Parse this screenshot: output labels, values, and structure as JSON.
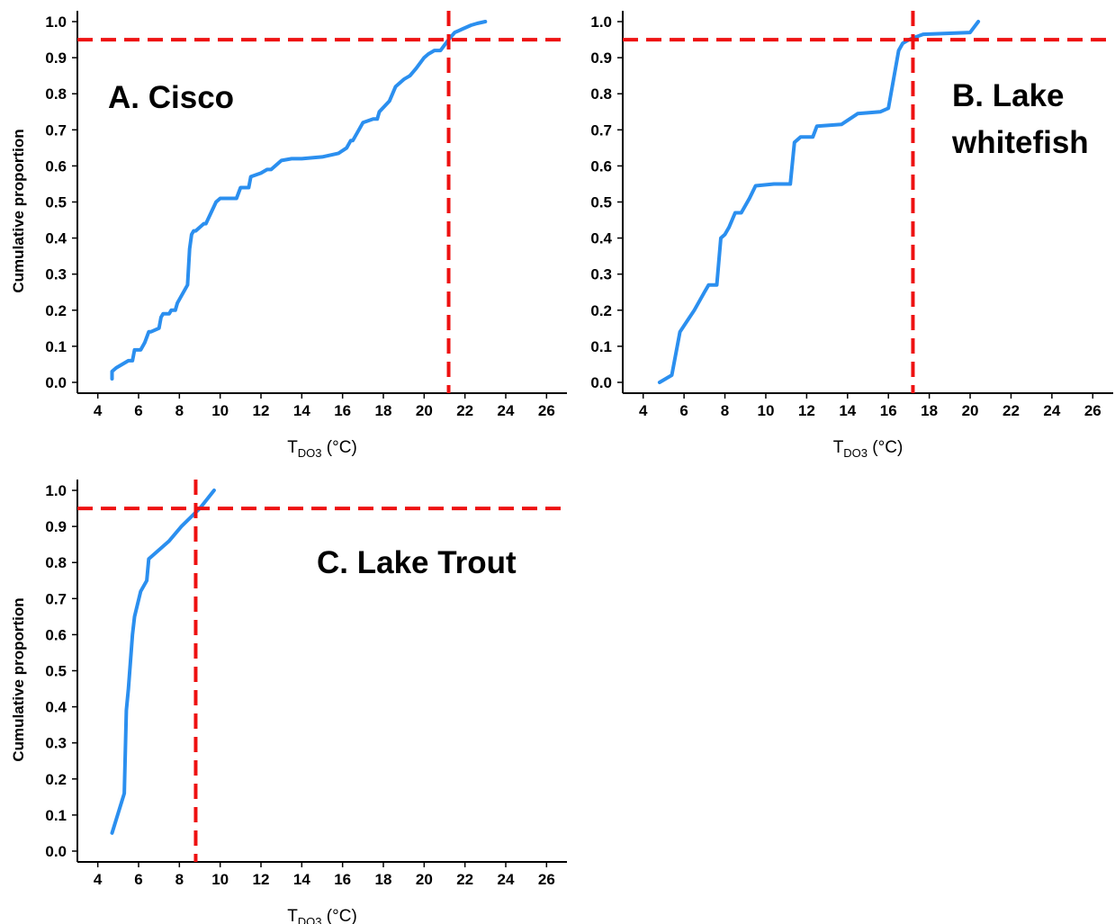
{
  "chart_data": [
    {
      "type": "line",
      "panel_label": "A. Cisco",
      "ylabel": "Cumulative proportion",
      "xlabel_main": "T",
      "xlabel_sub": "DO3",
      "xlabel_unit": " (°C)",
      "xlim": [
        3,
        27
      ],
      "ylim": [
        -0.03,
        1.03
      ],
      "xticks": [
        4,
        6,
        8,
        10,
        12,
        14,
        16,
        18,
        20,
        22,
        24,
        26
      ],
      "yticks": [
        "0.0",
        "0.1",
        "0.2",
        "0.3",
        "0.4",
        "0.5",
        "0.6",
        "0.7",
        "0.8",
        "0.9",
        "1.0"
      ],
      "line_color": "#2b8fef",
      "ref_color": "#ee1111",
      "ref_x": 21.2,
      "ref_y": 0.95,
      "series": [
        {
          "x": [
            4.7,
            4.7,
            4.9,
            5.2,
            5.5,
            5.7,
            5.8,
            6.1,
            6.3,
            6.5,
            6.6,
            7.0,
            7.1,
            7.2,
            7.5,
            7.6,
            7.8,
            7.9,
            8.2,
            8.4,
            8.5,
            8.6,
            8.7,
            8.8,
            9.2,
            9.3,
            9.8,
            10.0,
            10.4,
            10.8,
            11.0,
            11.4,
            11.5,
            12.0,
            12.3,
            12.5,
            12.9,
            13.0,
            13.5,
            14.0,
            15.0,
            15.8,
            16.2,
            16.4,
            16.5,
            16.8,
            17.0,
            17.5,
            17.7,
            17.8,
            18.3,
            18.6,
            19.0,
            19.3,
            19.6,
            20.0,
            20.2,
            20.5,
            20.8,
            21.2,
            21.5,
            21.9,
            22.3,
            22.6,
            23.0
          ],
          "y": [
            0.01,
            0.03,
            0.04,
            0.05,
            0.06,
            0.06,
            0.09,
            0.09,
            0.11,
            0.14,
            0.14,
            0.15,
            0.18,
            0.19,
            0.19,
            0.2,
            0.2,
            0.22,
            0.25,
            0.27,
            0.37,
            0.41,
            0.42,
            0.42,
            0.44,
            0.44,
            0.5,
            0.51,
            0.51,
            0.51,
            0.54,
            0.54,
            0.57,
            0.58,
            0.59,
            0.59,
            0.61,
            0.615,
            0.62,
            0.62,
            0.625,
            0.635,
            0.65,
            0.67,
            0.67,
            0.7,
            0.72,
            0.73,
            0.73,
            0.75,
            0.78,
            0.82,
            0.84,
            0.85,
            0.87,
            0.9,
            0.91,
            0.92,
            0.92,
            0.95,
            0.97,
            0.98,
            0.99,
            0.995,
            1.0
          ]
        }
      ]
    },
    {
      "type": "line",
      "panel_label": [
        "B. Lake",
        "whitefish"
      ],
      "ylabel": "",
      "xlabel_main": "T",
      "xlabel_sub": "DO3",
      "xlabel_unit": " (°C)",
      "xlim": [
        3,
        27
      ],
      "ylim": [
        -0.03,
        1.03
      ],
      "xticks": [
        4,
        6,
        8,
        10,
        12,
        14,
        16,
        18,
        20,
        22,
        24,
        26
      ],
      "yticks": [
        "0.0",
        "0.1",
        "0.2",
        "0.3",
        "0.4",
        "0.5",
        "0.6",
        "0.7",
        "0.8",
        "0.9",
        "1.0"
      ],
      "line_color": "#2b8fef",
      "ref_color": "#ee1111",
      "ref_x": 17.2,
      "ref_y": 0.95,
      "series": [
        {
          "x": [
            4.8,
            5.4,
            5.8,
            6.5,
            7.0,
            7.2,
            7.6,
            7.8,
            8.0,
            8.2,
            8.5,
            8.8,
            9.2,
            9.5,
            10.4,
            11.2,
            11.4,
            11.7,
            12.3,
            12.5,
            13.7,
            14.5,
            15.6,
            16.0,
            16.5,
            16.7,
            17.0,
            17.7,
            20.0,
            20.4
          ],
          "y": [
            0.0,
            0.02,
            0.14,
            0.2,
            0.25,
            0.27,
            0.27,
            0.4,
            0.41,
            0.43,
            0.47,
            0.47,
            0.51,
            0.545,
            0.55,
            0.55,
            0.665,
            0.68,
            0.68,
            0.71,
            0.715,
            0.745,
            0.75,
            0.76,
            0.92,
            0.94,
            0.95,
            0.965,
            0.97,
            1.0
          ]
        }
      ]
    },
    {
      "type": "line",
      "panel_label": "C. Lake Trout",
      "ylabel": "Cumulative proportion",
      "xlabel_main": "T",
      "xlabel_sub": "DO3",
      "xlabel_unit": " (°C)",
      "xlim": [
        3,
        27
      ],
      "ylim": [
        -0.03,
        1.03
      ],
      "xticks": [
        4,
        6,
        8,
        10,
        12,
        14,
        16,
        18,
        20,
        22,
        24,
        26
      ],
      "yticks": [
        "0.0",
        "0.1",
        "0.2",
        "0.3",
        "0.4",
        "0.5",
        "0.6",
        "0.7",
        "0.8",
        "0.9",
        "1.0"
      ],
      "line_color": "#2b8fef",
      "ref_color": "#ee1111",
      "ref_x": 8.8,
      "ref_y": 0.95,
      "series": [
        {
          "x": [
            4.7,
            5.3,
            5.4,
            5.5,
            5.7,
            5.8,
            6.1,
            6.4,
            6.5,
            7.5,
            8.1,
            9.0,
            9.7
          ],
          "y": [
            0.05,
            0.16,
            0.39,
            0.45,
            0.6,
            0.65,
            0.72,
            0.75,
            0.81,
            0.86,
            0.9,
            0.95,
            1.0
          ]
        }
      ]
    }
  ]
}
